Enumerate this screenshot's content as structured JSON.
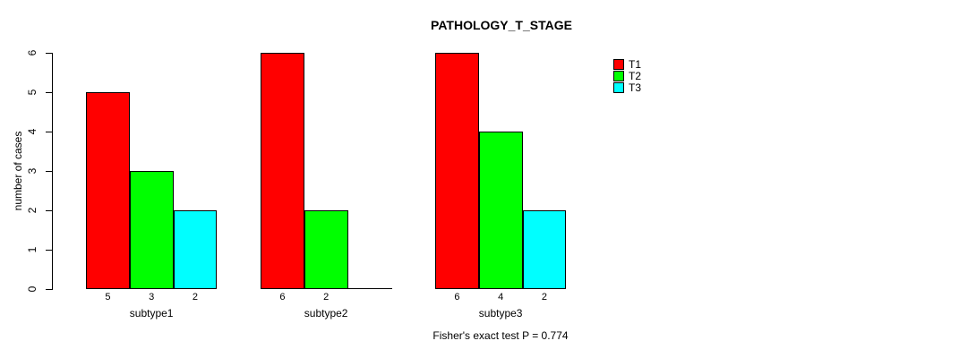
{
  "chart_data": {
    "type": "bar",
    "title": "PATHOLOGY_T_STAGE",
    "ylabel": "number of cases",
    "xlabel": "",
    "ylim": [
      0,
      6
    ],
    "yticks": [
      0,
      1,
      2,
      3,
      4,
      5,
      6
    ],
    "grid": false,
    "legend_position": "right",
    "categories": [
      "subtype1",
      "subtype2",
      "subtype3"
    ],
    "series": [
      {
        "name": "T1",
        "color": "#FF0000",
        "values": [
          5,
          6,
          6
        ]
      },
      {
        "name": "T2",
        "color": "#00FF00",
        "values": [
          3,
          2,
          4
        ]
      },
      {
        "name": "T3",
        "color": "#00FFFF",
        "values": [
          2,
          0,
          2
        ]
      }
    ],
    "bar_value_labels": [
      [
        "5",
        "3",
        "2"
      ],
      [
        "6",
        "2",
        ""
      ],
      [
        "6",
        "4",
        "2"
      ]
    ],
    "footnote": "Fisher's exact test P = 0.774",
    "axis_color": "#000000",
    "background_color": "#FFFFFF"
  }
}
